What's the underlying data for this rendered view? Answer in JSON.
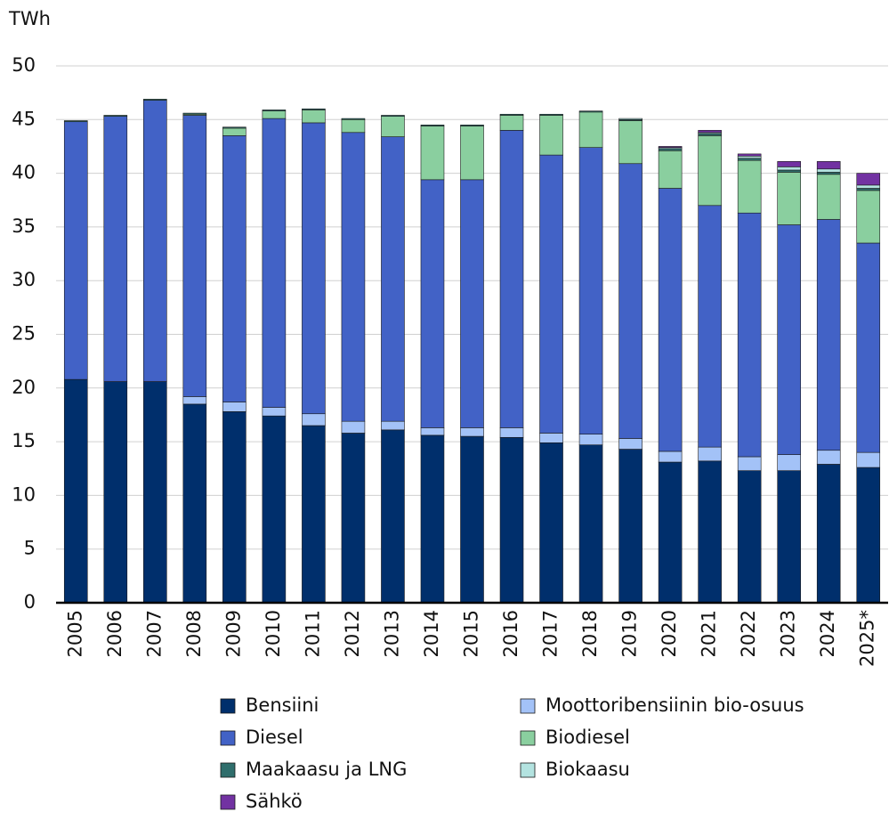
{
  "chart_data": {
    "type": "stacked_bar",
    "y_label": "TWh",
    "categories": [
      "2005",
      "2006",
      "2007",
      "2008",
      "2009",
      "2010",
      "2011",
      "2012",
      "2013",
      "2014",
      "2015",
      "2016",
      "2017",
      "2018",
      "2019",
      "2020",
      "2021",
      "2022",
      "2023",
      "2024",
      "2025*"
    ],
    "series": [
      {
        "name": "Bensiini",
        "color": "#002f6c",
        "values": [
          20.8,
          20.6,
          20.6,
          18.5,
          17.8,
          17.4,
          16.5,
          15.8,
          16.1,
          15.6,
          15.5,
          15.4,
          14.9,
          14.7,
          14.3,
          13.1,
          13.2,
          12.3,
          12.3,
          12.9,
          12.6
        ]
      },
      {
        "name": "Moottoribensiinin bio-osuus",
        "color": "#a3c2f7",
        "values": [
          0,
          0,
          0,
          0.7,
          0.9,
          0.8,
          1.1,
          1.1,
          0.8,
          0.7,
          0.8,
          0.9,
          0.9,
          1.0,
          1.0,
          1.0,
          1.3,
          1.3,
          1.5,
          1.3,
          1.4
        ]
      },
      {
        "name": "Diesel",
        "color": "#4262c6",
        "values": [
          24.0,
          24.7,
          26.2,
          26.2,
          24.8,
          26.9,
          27.1,
          26.9,
          26.5,
          23.1,
          23.1,
          27.7,
          25.9,
          26.7,
          25.6,
          24.5,
          22.5,
          22.7,
          21.4,
          21.5,
          19.5
        ]
      },
      {
        "name": "Biodiesel",
        "color": "#8acf9f",
        "values": [
          0,
          0,
          0,
          0.1,
          0.7,
          0.7,
          1.2,
          1.2,
          1.9,
          5.0,
          5.0,
          1.4,
          3.7,
          3.3,
          4.0,
          3.5,
          6.5,
          4.9,
          4.9,
          4.2,
          4.9
        ]
      },
      {
        "name": "Maakaasu ja LNG",
        "color": "#2f6e6c",
        "values": [
          0.1,
          0.1,
          0.1,
          0.1,
          0.1,
          0.1,
          0.1,
          0.1,
          0.1,
          0.1,
          0.1,
          0.1,
          0.1,
          0.1,
          0.1,
          0.2,
          0.2,
          0.2,
          0.2,
          0.2,
          0.2
        ]
      },
      {
        "name": "Biokaasu",
        "color": "#b3e3e0",
        "values": [
          0,
          0,
          0,
          0,
          0,
          0,
          0,
          0,
          0,
          0,
          0,
          0,
          0,
          0,
          0.1,
          0.1,
          0.1,
          0.2,
          0.3,
          0.3,
          0.3
        ]
      },
      {
        "name": "Sähkö",
        "color": "#7232a2",
        "values": [
          0,
          0,
          0,
          0,
          0,
          0,
          0,
          0,
          0,
          0,
          0,
          0,
          0,
          0,
          0,
          0.1,
          0.2,
          0.2,
          0.5,
          0.7,
          1.1
        ]
      }
    ],
    "ylim": [
      0,
      50
    ],
    "yticks": [
      0,
      5,
      10,
      15,
      20,
      25,
      30,
      35,
      40,
      45,
      50
    ],
    "grid": true
  }
}
